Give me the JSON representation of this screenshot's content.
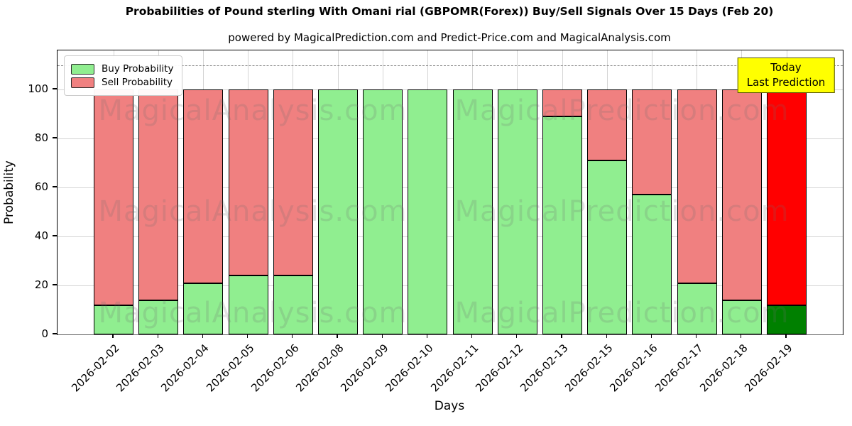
{
  "title": "Probabilities of Pound sterling With Omani rial (GBPOMR(Forex)) Buy/Sell Signals Over 15 Days (Feb 20)",
  "subtitle": "powered by MagicalPrediction.com and Predict-Price.com and MagicalAnalysis.com",
  "legend": {
    "buy_label": "Buy Probability",
    "sell_label": "Sell Probability"
  },
  "annotation": {
    "line1": "Today",
    "line2": "Last Prediction"
  },
  "watermarks": [
    "MagicalAnalysis.com",
    "MagicalPrediction.com"
  ],
  "colors": {
    "buy": "#90EE90",
    "sell": "#F08080",
    "today_buy": "#008000",
    "today_sell": "#FF0000",
    "bar_edge": "#000000",
    "grid": "#B0B0B0",
    "annotation_bg": "#FFFF00",
    "dashed_line": "#8A8A8A"
  },
  "chart_data": {
    "type": "bar",
    "stacked": true,
    "title": "Probabilities of Pound sterling With Omani rial (GBPOMR(Forex)) Buy/Sell Signals Over 15 Days (Feb 20)",
    "xlabel": "Days",
    "ylabel": "Probability",
    "categories": [
      "2026-02-02",
      "2026-02-03",
      "2026-02-04",
      "2026-02-05",
      "2026-02-06",
      "2026-02-08",
      "2026-02-09",
      "2026-02-10",
      "2026-02-11",
      "2026-02-12",
      "2026-02-13",
      "2026-02-15",
      "2026-02-16",
      "2026-02-17",
      "2026-02-18",
      "2026-02-19"
    ],
    "series": [
      {
        "name": "Buy Probability",
        "color": "#90EE90",
        "values": [
          12,
          14,
          21,
          24,
          24,
          100,
          100,
          100,
          100,
          100,
          89,
          71,
          57,
          21,
          14,
          12
        ]
      },
      {
        "name": "Sell Probability",
        "color": "#F08080",
        "values": [
          88,
          86,
          79,
          76,
          76,
          0,
          0,
          0,
          0,
          0,
          11,
          29,
          43,
          79,
          86,
          88
        ]
      }
    ],
    "today_index": 15,
    "today_colors": {
      "buy": "#008000",
      "sell": "#FF0000"
    },
    "yticks": [
      0,
      20,
      40,
      60,
      80,
      100
    ],
    "ylim": [
      0,
      116
    ],
    "dashed_line_y": 110,
    "grid": true,
    "legend_position": "upper left",
    "annotation_text": "Today\nLast Prediction"
  }
}
